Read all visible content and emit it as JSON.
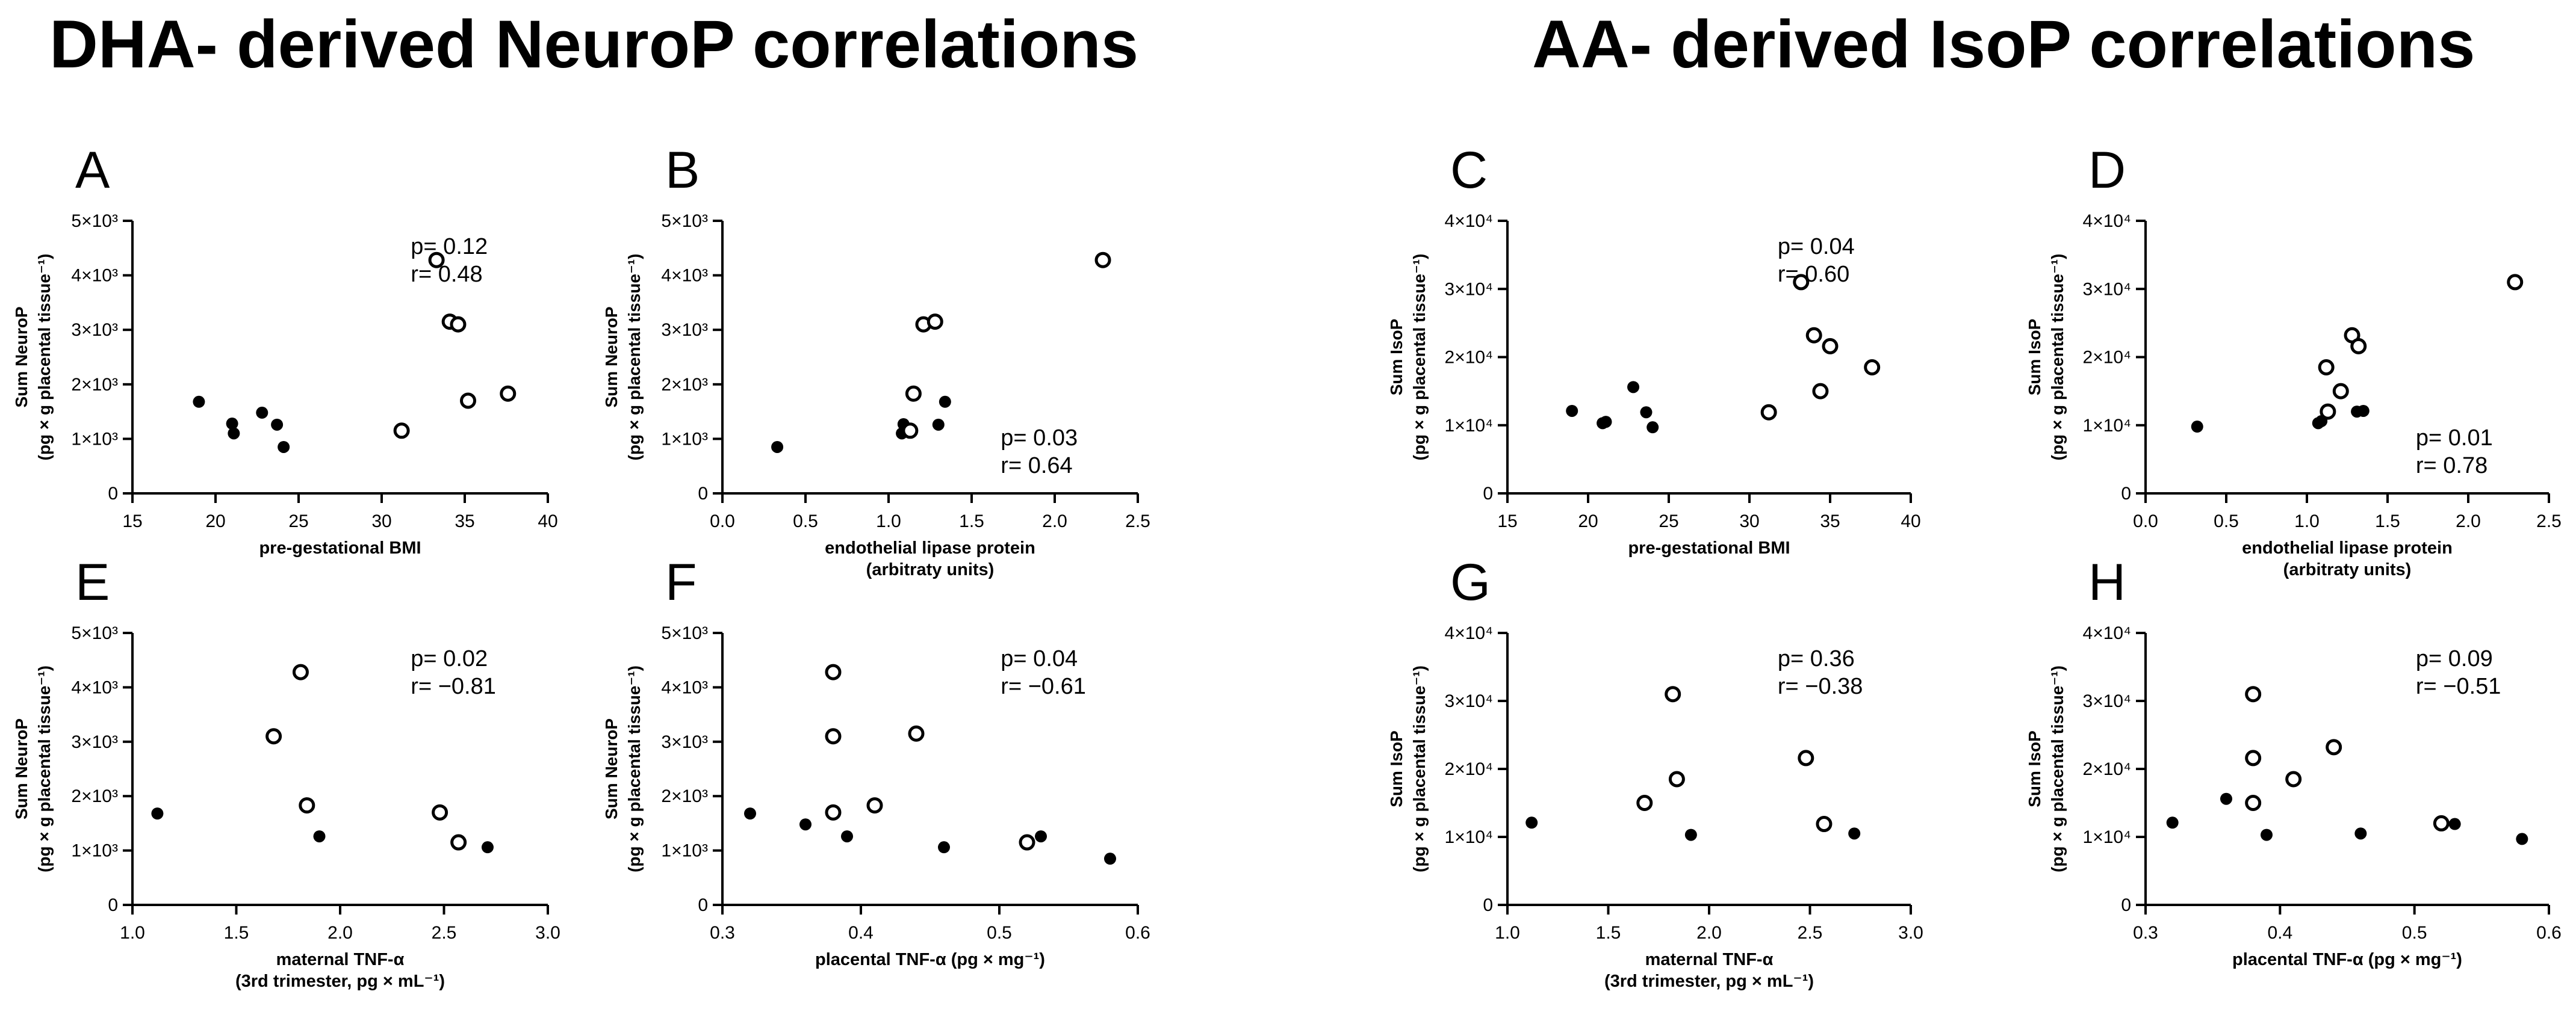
{
  "titles": {
    "left": "DHA- derived NeuroP correlations",
    "right": "AA- derived IsoP correlations"
  },
  "colors": {
    "ink": "#000000",
    "open_fill": "#ffffff"
  },
  "chart_data": [
    {
      "panel": "A",
      "type": "scatter",
      "xlabel": [
        "pre-gestational BMI"
      ],
      "ylabel": [
        "Sum NeuroP",
        "(pg × g placental tissue⁻¹)"
      ],
      "xlim": [
        15,
        40
      ],
      "xticks": [
        "15",
        "20",
        "25",
        "30",
        "35",
        "40"
      ],
      "ylim": [
        0,
        5000
      ],
      "yticks": [
        "0",
        "1×10³",
        "2×10³",
        "3×10³",
        "4×10³",
        "5×10³"
      ],
      "annotation": [
        "p= 0.12",
        "r= 0.48"
      ],
      "annotation_pos": "top-right",
      "series": [
        {
          "name": "filled",
          "marker": "filled",
          "x": [
            19.0,
            21.0,
            21.1,
            22.8,
            23.7,
            24.1
          ],
          "y": [
            1680,
            1280,
            1100,
            1480,
            1260,
            850
          ]
        },
        {
          "name": "open",
          "marker": "open",
          "x": [
            31.2,
            33.3,
            34.1,
            34.6,
            35.2,
            37.6
          ],
          "y": [
            1150,
            4280,
            3150,
            3100,
            1700,
            1830
          ]
        }
      ]
    },
    {
      "panel": "B",
      "type": "scatter",
      "xlabel": [
        "endothelial lipase protein",
        "(arbitraty units)"
      ],
      "ylabel": [
        "Sum NeuroP",
        "(pg × g placental tissue⁻¹)"
      ],
      "xlim": [
        0,
        2.5
      ],
      "xticks": [
        "0.0",
        "0.5",
        "1.0",
        "1.5",
        "2.0",
        "2.5"
      ],
      "ylim": [
        0,
        5000
      ],
      "yticks": [
        "0",
        "1×10³",
        "2×10³",
        "3×10³",
        "4×10³",
        "5×10³"
      ],
      "annotation": [
        "p= 0.03",
        "r= 0.64"
      ],
      "annotation_pos": "bottom-right",
      "series": [
        {
          "name": "filled",
          "marker": "filled",
          "x": [
            0.33,
            1.08,
            1.09,
            1.3,
            1.34
          ],
          "y": [
            850,
            1100,
            1270,
            1260,
            1680
          ]
        },
        {
          "name": "open",
          "marker": "open",
          "x": [
            1.13,
            1.15,
            1.21,
            1.28,
            2.29
          ],
          "y": [
            1150,
            1830,
            3100,
            3150,
            4280
          ]
        }
      ]
    },
    {
      "panel": "C",
      "type": "scatter",
      "xlabel": [
        "pre-gestational BMI"
      ],
      "ylabel": [
        "Sum IsoP",
        "(pg × g placental tissue⁻¹)"
      ],
      "xlim": [
        15,
        40
      ],
      "xticks": [
        "15",
        "20",
        "25",
        "30",
        "35",
        "40"
      ],
      "ylim": [
        0,
        40000
      ],
      "yticks": [
        "0",
        "1×10⁴",
        "2×10⁴",
        "3×10⁴",
        "4×10⁴"
      ],
      "annotation": [
        "p= 0.04",
        "r= 0.60"
      ],
      "annotation_pos": "top-right",
      "series": [
        {
          "name": "filled",
          "marker": "filled",
          "x": [
            19.0,
            20.9,
            21.1,
            22.8,
            23.6,
            24.0
          ],
          "y": [
            12100,
            10300,
            10500,
            15600,
            11900,
            9700
          ]
        },
        {
          "name": "open",
          "marker": "open",
          "x": [
            31.2,
            33.2,
            34.0,
            34.4,
            35.0,
            37.6
          ],
          "y": [
            11900,
            31000,
            23200,
            15000,
            21600,
            18500
          ]
        }
      ]
    },
    {
      "panel": "D",
      "type": "scatter",
      "xlabel": [
        "endothelial lipase protein",
        "(arbitraty units)"
      ],
      "ylabel": [
        "Sum IsoP",
        "(pg × g placental tissue⁻¹)"
      ],
      "xlim": [
        0,
        2.5
      ],
      "xticks": [
        "0.0",
        "0.5",
        "1.0",
        "1.5",
        "2.0",
        "2.5"
      ],
      "ylim": [
        0,
        40000
      ],
      "yticks": [
        "0",
        "1×10⁴",
        "2×10⁴",
        "3×10⁴",
        "4×10⁴"
      ],
      "annotation": [
        "p= 0.01",
        "r= 0.78"
      ],
      "annotation_pos": "bottom-right",
      "series": [
        {
          "name": "filled",
          "marker": "filled",
          "x": [
            0.32,
            1.07,
            1.09,
            1.31,
            1.35
          ],
          "y": [
            9800,
            10300,
            10600,
            12000,
            12100
          ]
        },
        {
          "name": "open",
          "marker": "open",
          "x": [
            1.13,
            1.12,
            1.21,
            1.28,
            1.32,
            2.29
          ],
          "y": [
            12000,
            18500,
            15000,
            23200,
            21600,
            31000
          ]
        }
      ]
    },
    {
      "panel": "E",
      "type": "scatter",
      "xlabel": [
        "maternal TNF-α",
        "(3rd trimester, pg × mL⁻¹)"
      ],
      "ylabel": [
        "Sum NeuroP",
        "(pg × g placental tissue⁻¹)"
      ],
      "xlim": [
        1.0,
        3.0
      ],
      "xticks": [
        "1.0",
        "1.5",
        "2.0",
        "2.5",
        "3.0"
      ],
      "ylim": [
        0,
        5000
      ],
      "yticks": [
        "0",
        "1×10³",
        "2×10³",
        "3×10³",
        "4×10³",
        "5×10³"
      ],
      "annotation": [
        "p= 0.02",
        "r= −0.81"
      ],
      "annotation_pos": "top-right",
      "series": [
        {
          "name": "filled",
          "marker": "filled",
          "x": [
            1.12,
            1.9,
            2.71
          ],
          "y": [
            1680,
            1260,
            1060
          ]
        },
        {
          "name": "open",
          "marker": "open",
          "x": [
            1.68,
            1.81,
            1.84,
            2.48,
            2.57
          ],
          "y": [
            3100,
            4280,
            1830,
            1700,
            1150
          ]
        }
      ]
    },
    {
      "panel": "F",
      "type": "scatter",
      "xlabel": [
        "placental TNF-α (pg × mg⁻¹)"
      ],
      "ylabel": [
        "Sum NeuroP",
        "(pg × g placental tissue⁻¹)"
      ],
      "xlim": [
        0.3,
        0.6
      ],
      "xticks": [
        "0.3",
        "0.4",
        "0.5",
        "0.6"
      ],
      "ylim": [
        0,
        5000
      ],
      "yticks": [
        "0",
        "1×10³",
        "2×10³",
        "3×10³",
        "4×10³",
        "5×10³"
      ],
      "annotation": [
        "p= 0.04",
        "r= −0.61"
      ],
      "annotation_pos": "top-right",
      "series": [
        {
          "name": "filled",
          "marker": "filled",
          "x": [
            0.32,
            0.36,
            0.39,
            0.46,
            0.53,
            0.58
          ],
          "y": [
            1680,
            1480,
            1260,
            1060,
            1260,
            850
          ]
        },
        {
          "name": "open",
          "marker": "open",
          "x": [
            0.38,
            0.38,
            0.38,
            0.41,
            0.44,
            0.52
          ],
          "y": [
            4280,
            3100,
            1700,
            1830,
            3150,
            1150
          ]
        }
      ]
    },
    {
      "panel": "G",
      "type": "scatter",
      "xlabel": [
        "maternal TNF-α",
        "(3rd trimester, pg × mL⁻¹)"
      ],
      "ylabel": [
        "Sum IsoP",
        "(pg × g placental tissue⁻¹)"
      ],
      "xlim": [
        1.0,
        3.0
      ],
      "xticks": [
        "1.0",
        "1.5",
        "2.0",
        "2.5",
        "3.0"
      ],
      "ylim": [
        0,
        40000
      ],
      "yticks": [
        "0",
        "1×10⁴",
        "2×10⁴",
        "3×10⁴",
        "4×10⁴"
      ],
      "annotation": [
        "p= 0.36",
        "r= −0.38"
      ],
      "annotation_pos": "top-right",
      "series": [
        {
          "name": "filled",
          "marker": "filled",
          "x": [
            1.12,
            1.91,
            2.72
          ],
          "y": [
            12100,
            10300,
            10500
          ]
        },
        {
          "name": "open",
          "marker": "open",
          "x": [
            1.68,
            1.82,
            1.84,
            2.48,
            2.57
          ],
          "y": [
            15000,
            31000,
            18500,
            21600,
            11900
          ]
        }
      ]
    },
    {
      "panel": "H",
      "type": "scatter",
      "xlabel": [
        "placental TNF-α (pg × mg⁻¹)"
      ],
      "ylabel": [
        "Sum IsoP",
        "(pg × g placental tissue⁻¹)"
      ],
      "xlim": [
        0.3,
        0.6
      ],
      "xticks": [
        "0.3",
        "0.4",
        "0.5",
        "0.6"
      ],
      "ylim": [
        0,
        40000
      ],
      "yticks": [
        "0",
        "1×10⁴",
        "2×10⁴",
        "3×10⁴",
        "4×10⁴"
      ],
      "annotation": [
        "p= 0.09",
        "r= −0.51"
      ],
      "annotation_pos": "top-right",
      "series": [
        {
          "name": "filled",
          "marker": "filled",
          "x": [
            0.32,
            0.36,
            0.39,
            0.46,
            0.53,
            0.58
          ],
          "y": [
            12100,
            15600,
            10300,
            10500,
            11900,
            9700
          ]
        },
        {
          "name": "open",
          "marker": "open",
          "x": [
            0.38,
            0.38,
            0.38,
            0.41,
            0.44,
            0.52
          ],
          "y": [
            31000,
            21600,
            15000,
            18500,
            23200,
            12000
          ]
        }
      ]
    }
  ]
}
